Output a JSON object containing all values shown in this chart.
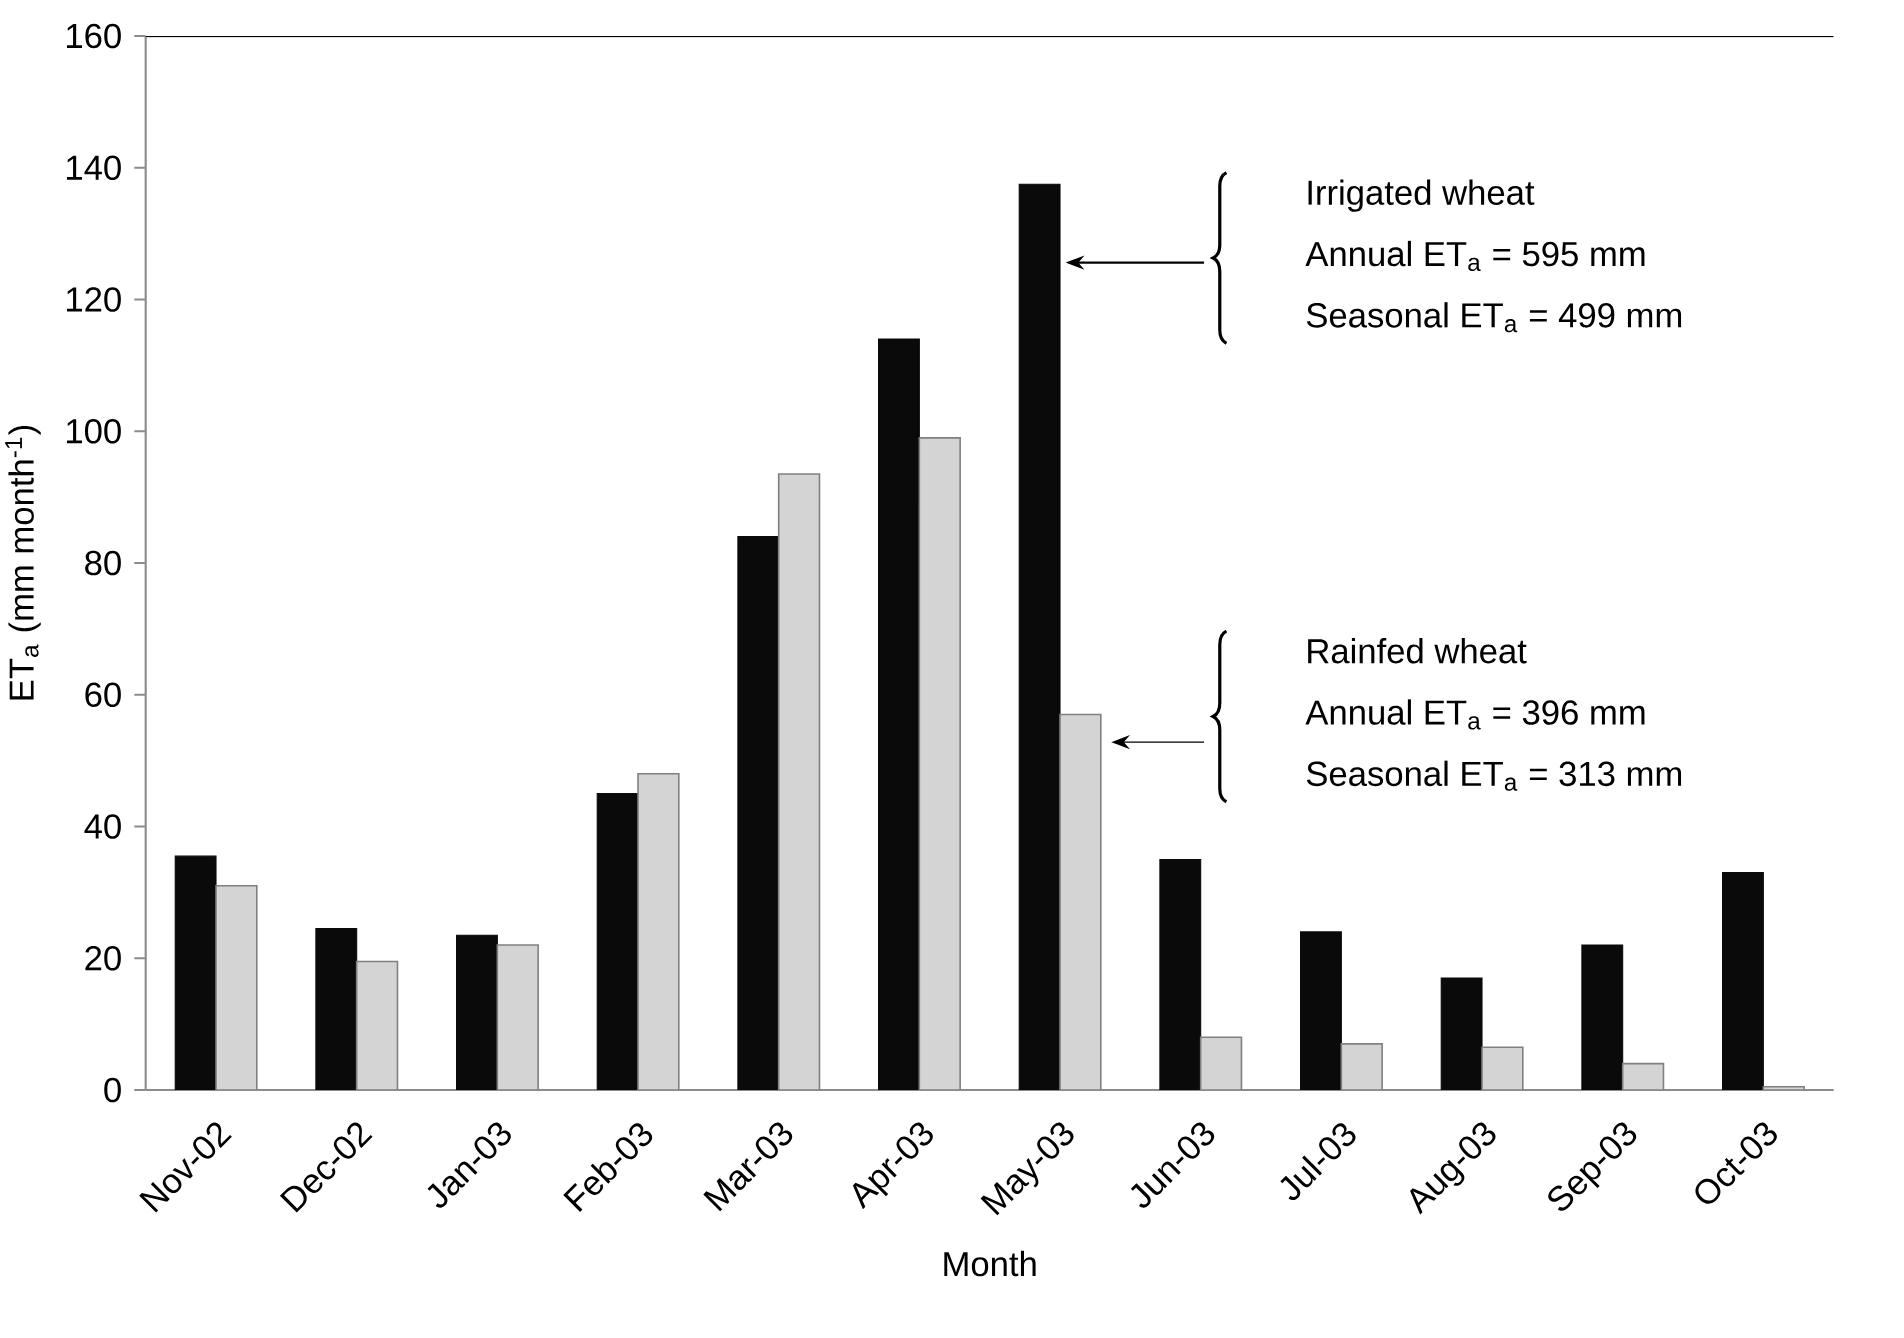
{
  "chart_data": {
    "type": "bar",
    "xlabel": "Month",
    "ylabel": "ET$_{a}$ (mm month$^{-1}$)",
    "categories": [
      "Nov-02",
      "Dec-02",
      "Jan-03",
      "Feb-03",
      "Mar-03",
      "Apr-03",
      "May-03",
      "Jun-03",
      "Jul-03",
      "Aug-03",
      "Sep-03",
      "Oct-03"
    ],
    "series": [
      {
        "color": "#0a0a0a",
        "values": [
          35.5,
          24.5,
          23.5,
          45,
          84,
          114,
          137.5,
          35,
          24,
          17,
          22,
          33
        ]
      },
      {
        "color": "#d4d4d4",
        "values": [
          31,
          19.5,
          22,
          48,
          93.5,
          99,
          57,
          8,
          7,
          6.5,
          4,
          0.5
        ]
      }
    ],
    "ylim": [
      0,
      160
    ],
    "yticks": [
      0,
      20,
      40,
      60,
      80,
      100,
      120,
      140,
      160
    ],
    "grid": false,
    "annotations": [
      "Irrigated wheat",
      "Annual ET$_{a}$ = 595 mm",
      "Seasonal ET$_{a}$ = 499 mm",
      "Rainfed wheat",
      "Annual ET$_{a}$ = 396 mm",
      "Seasonal ET$_{a}$ = 313 mm"
    ]
  }
}
